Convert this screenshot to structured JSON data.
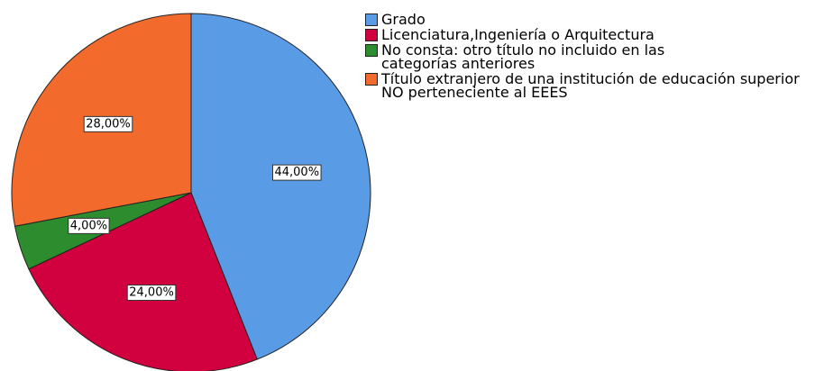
{
  "chart_data": {
    "type": "pie",
    "categories": [
      "Grado",
      "Licenciatura,Ingeniería o Arquitectura",
      "No consta: otro título no incluido en las categorías anteriores",
      "Título extranjero de una institución de educación superior NO perteneciente al EEES"
    ],
    "values": [
      44,
      24,
      4,
      28
    ],
    "value_labels": [
      "44,00%",
      "24,00%",
      "4,00%",
      "28,00%"
    ],
    "colors": [
      "#5a9be6",
      "#d1003f",
      "#2c8c2e",
      "#f26a2c"
    ]
  }
}
